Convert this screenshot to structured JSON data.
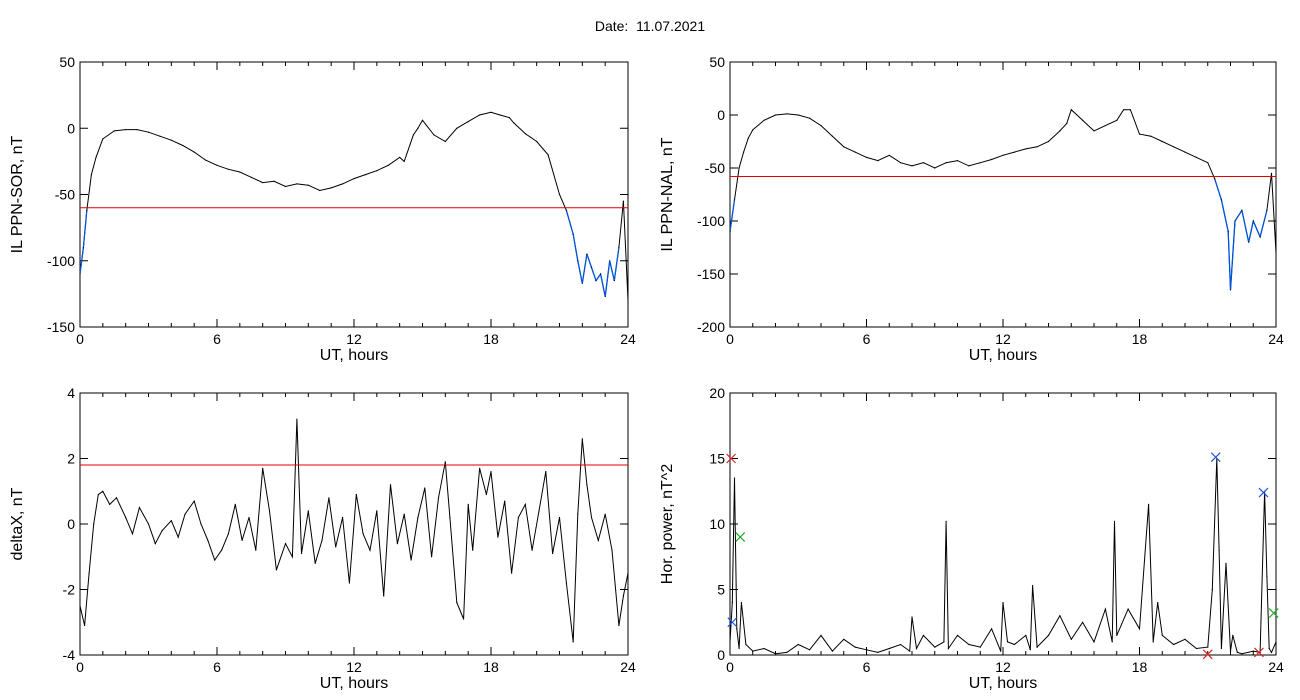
{
  "page": {
    "title": "Date:  11.07.2021"
  },
  "colors": {
    "threshold": "#e00000",
    "below_threshold": "#0055dd",
    "trace": "#000000",
    "marker_red": "#dd2222",
    "marker_blue": "#2255dd",
    "marker_green": "#22aa22"
  },
  "chart_data": [
    {
      "type": "line",
      "xlabel": "UT, hours",
      "ylabel": "IL PPN-SOR, nT",
      "xlim": [
        0,
        24
      ],
      "ylim": [
        -150,
        50
      ],
      "xticks": [
        0,
        6,
        12,
        18,
        24
      ],
      "yticks": [
        -150,
        -100,
        -50,
        0,
        50
      ],
      "threshold": -60,
      "series": [
        {
          "x": [
            0,
            0.15,
            0.3,
            0.5,
            0.7,
            1,
            1.5,
            2,
            2.5,
            3,
            3.5,
            4,
            4.5,
            5,
            5.5,
            6,
            6.5,
            7,
            7.5,
            8,
            8.5,
            9,
            9.5,
            10,
            10.5,
            11,
            11.5,
            12,
            12.5,
            13,
            13.5,
            14,
            14.2,
            14.6,
            14.8,
            15,
            15.5,
            16,
            16.5,
            17,
            17.5,
            18,
            18.4,
            18.8,
            19,
            19.5,
            20,
            20.5,
            21,
            21.3,
            21.6,
            21.8,
            22,
            22.2,
            22.4,
            22.6,
            22.8,
            23,
            23.2,
            23.4,
            23.6,
            23.8,
            24
          ],
          "y": [
            -110,
            -90,
            -62,
            -35,
            -22,
            -8,
            -2,
            -1,
            -1,
            -3,
            -6,
            -9,
            -13,
            -18,
            -24,
            -28,
            -31,
            -33,
            -37,
            -41,
            -40,
            -44,
            -42,
            -43,
            -47,
            -45,
            -42,
            -38,
            -35,
            -32,
            -28,
            -22,
            -25,
            -5,
            0,
            6,
            -5,
            -10,
            0,
            5,
            10,
            12,
            10,
            8,
            4,
            -4,
            -10,
            -20,
            -50,
            -62,
            -80,
            -100,
            -117,
            -95,
            -105,
            -115,
            -110,
            -127,
            -100,
            -115,
            -90,
            -55,
            -130
          ]
        }
      ]
    },
    {
      "type": "line",
      "xlabel": "UT, hours",
      "ylabel": "IL PPN-NAL, nT",
      "xlim": [
        0,
        24
      ],
      "ylim": [
        -200,
        50
      ],
      "xticks": [
        0,
        6,
        12,
        18,
        24
      ],
      "yticks": [
        -200,
        -150,
        -100,
        -50,
        0,
        50
      ],
      "threshold": -58,
      "series": [
        {
          "x": [
            0,
            0.2,
            0.4,
            0.6,
            0.8,
            1,
            1.5,
            2,
            2.5,
            3,
            3.5,
            4,
            4.5,
            5,
            5.5,
            6,
            6.5,
            7,
            7.5,
            8,
            8.5,
            9,
            9.5,
            10,
            10.5,
            11,
            11.5,
            12,
            12.5,
            13,
            13.5,
            14,
            14.5,
            14.8,
            15,
            15.5,
            16,
            16.5,
            17,
            17.3,
            17.6,
            18,
            18.5,
            19,
            19.5,
            20,
            20.5,
            21,
            21.3,
            21.6,
            21.9,
            22,
            22.2,
            22.5,
            22.8,
            23,
            23.3,
            23.6,
            23.8,
            24
          ],
          "y": [
            -110,
            -80,
            -50,
            -35,
            -22,
            -14,
            -5,
            0,
            1,
            0,
            -3,
            -10,
            -20,
            -30,
            -35,
            -40,
            -43,
            -38,
            -45,
            -48,
            -45,
            -50,
            -45,
            -43,
            -48,
            -45,
            -42,
            -38,
            -35,
            -32,
            -30,
            -25,
            -15,
            -8,
            5,
            -5,
            -15,
            -10,
            -5,
            5,
            5,
            -18,
            -20,
            -25,
            -30,
            -35,
            -40,
            -45,
            -60,
            -80,
            -110,
            -165,
            -100,
            -90,
            -120,
            -100,
            -115,
            -90,
            -55,
            -130
          ]
        }
      ]
    },
    {
      "type": "line",
      "xlabel": "UT, hours",
      "ylabel": "deltaX, nT",
      "xlim": [
        0,
        24
      ],
      "ylim": [
        -4,
        4
      ],
      "xticks": [
        0,
        6,
        12,
        18,
        24
      ],
      "yticks": [
        -4,
        -2,
        0,
        2,
        4
      ],
      "threshold": 1.8,
      "series": [
        {
          "x": [
            0,
            0.2,
            0.4,
            0.6,
            0.8,
            1,
            1.3,
            1.6,
            2,
            2.3,
            2.6,
            3,
            3.3,
            3.6,
            4,
            4.3,
            4.6,
            5,
            5.3,
            5.6,
            5.9,
            6.2,
            6.5,
            6.8,
            7.1,
            7.4,
            7.7,
            8,
            8.3,
            8.6,
            9,
            9.3,
            9.5,
            9.7,
            10,
            10.3,
            10.6,
            10.9,
            11.2,
            11.5,
            11.8,
            12.1,
            12.4,
            12.7,
            13,
            13.3,
            13.6,
            13.9,
            14.2,
            14.5,
            14.8,
            15.1,
            15.4,
            15.7,
            16,
            16.2,
            16.5,
            16.8,
            17,
            17.2,
            17.5,
            17.8,
            18,
            18.3,
            18.6,
            18.9,
            19.2,
            19.5,
            19.8,
            20.1,
            20.4,
            20.7,
            21,
            21.3,
            21.6,
            21.8,
            22,
            22.2,
            22.4,
            22.7,
            23,
            23.3,
            23.6,
            23.8,
            24
          ],
          "y": [
            -2.5,
            -3.1,
            -1.5,
            0,
            0.9,
            1,
            0.6,
            0.8,
            0.2,
            -0.3,
            0.5,
            0,
            -0.6,
            -0.2,
            0.1,
            -0.4,
            0.3,
            0.7,
            0,
            -0.5,
            -1.1,
            -0.8,
            -0.3,
            0.6,
            -0.5,
            0.2,
            -0.8,
            1.7,
            0.4,
            -1.4,
            -0.6,
            -1,
            3.2,
            -0.9,
            0.4,
            -1.2,
            -0.5,
            0.8,
            -0.7,
            0.2,
            -1.8,
            0.9,
            -0.3,
            -0.8,
            0.4,
            -2.2,
            1.2,
            -0.6,
            0.3,
            -1.1,
            0.2,
            1.1,
            -1,
            0.8,
            1.9,
            0.2,
            -2.4,
            -2.9,
            0.6,
            -0.8,
            1.7,
            0.9,
            1.6,
            -0.4,
            0.7,
            -1.5,
            0.2,
            0.6,
            -0.8,
            0.4,
            1.6,
            -0.9,
            0.2,
            -1.8,
            -3.6,
            0.3,
            2.6,
            1.2,
            0.2,
            -0.5,
            0.3,
            -0.8,
            -3.1,
            -2.2,
            -1.5
          ]
        }
      ]
    },
    {
      "type": "line",
      "xlabel": "UT, hours",
      "ylabel": "Hor. power, nT^2",
      "xlim": [
        0,
        24
      ],
      "ylim": [
        0,
        20
      ],
      "xticks": [
        0,
        6,
        12,
        18,
        24
      ],
      "yticks": [
        0,
        5,
        10,
        15,
        20
      ],
      "series": [
        {
          "x": [
            0,
            0.1,
            0.2,
            0.3,
            0.4,
            0.5,
            0.7,
            1,
            1.5,
            2,
            2.5,
            3,
            3.5,
            4,
            4.5,
            5,
            5.5,
            6,
            6.5,
            7,
            7.5,
            7.9,
            8,
            8.2,
            8.5,
            9,
            9.4,
            9.5,
            9.6,
            10,
            10.5,
            11,
            11.5,
            11.9,
            12,
            12.2,
            12.5,
            13,
            13.2,
            13.3,
            13.5,
            14,
            14.5,
            15,
            15.5,
            16,
            16.5,
            16.8,
            16.9,
            17,
            17.5,
            18,
            18.4,
            18.6,
            18.8,
            19,
            19.5,
            20,
            20.5,
            21,
            21.2,
            21.4,
            21.5,
            21.6,
            21.8,
            22,
            22.1,
            22.3,
            22.5,
            23,
            23.3,
            23.5,
            23.6,
            23.7,
            23.8,
            24
          ],
          "y": [
            1,
            4,
            13.5,
            2,
            0.5,
            4,
            0.8,
            0.3,
            0.5,
            0.1,
            0.2,
            0.8,
            0.4,
            1.5,
            0.3,
            1.2,
            0.6,
            0.4,
            0.2,
            0.5,
            0.8,
            0.3,
            2.9,
            0.5,
            1.5,
            0.6,
            1,
            10.2,
            0.5,
            1.5,
            0.8,
            0.6,
            2,
            0.3,
            4,
            1,
            0.8,
            1.5,
            0.4,
            5.3,
            0.6,
            1.5,
            3,
            1.2,
            2.5,
            1,
            3.5,
            1,
            10.2,
            1.5,
            3.5,
            2,
            11.5,
            1,
            4,
            1.5,
            0.8,
            1.2,
            0.5,
            0.6,
            5,
            15,
            8,
            0.5,
            7,
            0.3,
            1.5,
            0.2,
            0.1,
            0.3,
            0.2,
            12.5,
            6,
            0.5,
            0.2,
            1
          ]
        }
      ],
      "markers": [
        {
          "x": 0.05,
          "y": 15,
          "symbol": "x",
          "color": "red"
        },
        {
          "x": 0.1,
          "y": 2.5,
          "symbol": "x",
          "color": "blue"
        },
        {
          "x": 0.45,
          "y": 9,
          "symbol": "x",
          "color": "green"
        },
        {
          "x": 21.35,
          "y": 15.1,
          "symbol": "x",
          "color": "blue"
        },
        {
          "x": 21.0,
          "y": 0.05,
          "symbol": "x",
          "color": "red"
        },
        {
          "x": 23.45,
          "y": 12.4,
          "symbol": "x",
          "color": "blue"
        },
        {
          "x": 23.25,
          "y": 0.2,
          "symbol": "x",
          "color": "red"
        },
        {
          "x": 23.9,
          "y": 3.2,
          "symbol": "x",
          "color": "green"
        }
      ]
    }
  ]
}
